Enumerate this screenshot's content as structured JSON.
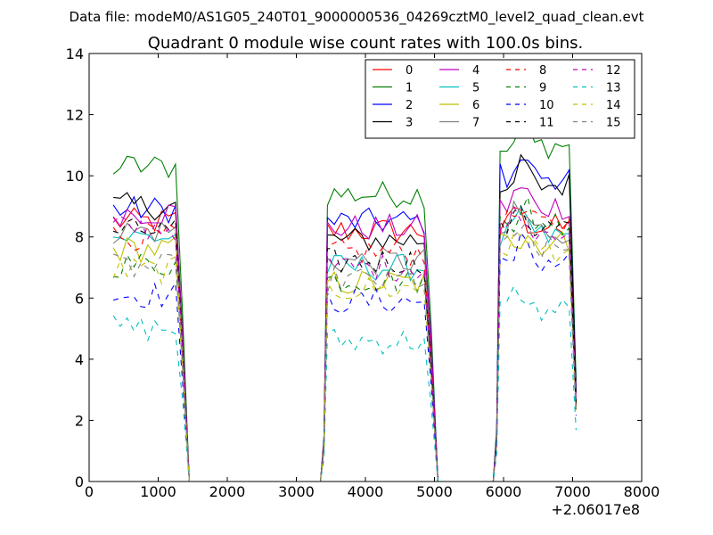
{
  "figure": {
    "suptitle": "Data file: modeM0/AS1G05_240T01_9000000536_04269cztM0_level2_quad_clean.evt"
  },
  "chart_data": {
    "type": "line",
    "title": "Quadrant 0 module wise count rates with 100.0s bins.",
    "xlabel": "",
    "ylabel": "",
    "xlim": [
      0,
      8000
    ],
    "ylim": [
      0,
      14
    ],
    "x_offset_label": "+2.06017e8",
    "xticks": [
      0,
      1000,
      2000,
      3000,
      4000,
      5000,
      6000,
      7000,
      8000
    ],
    "yticks": [
      0,
      2,
      4,
      6,
      8,
      10,
      12,
      14
    ],
    "grid": false,
    "legend": {
      "position": "top-right",
      "columns": 4
    },
    "segments": [
      {
        "start": 350,
        "end": 1450
      },
      {
        "start": 3450,
        "end": 5050
      },
      {
        "start": 5950,
        "end": 7150
      }
    ],
    "series": [
      {
        "name": "0",
        "color": "#ff0000",
        "dash": "solid",
        "levels": [
          8.5,
          8.2,
          8.3
        ]
      },
      {
        "name": "1",
        "color": "#008000",
        "dash": "solid",
        "levels": [
          10.3,
          9.4,
          11.0
        ]
      },
      {
        "name": "2",
        "color": "#0000ff",
        "dash": "solid",
        "levels": [
          8.9,
          8.5,
          10.0
        ]
      },
      {
        "name": "3",
        "color": "#000000",
        "dash": "solid",
        "levels": [
          9.0,
          7.9,
          9.7
        ]
      },
      {
        "name": "4",
        "color": "#bf00bf",
        "dash": "solid",
        "levels": [
          8.8,
          8.3,
          9.0
        ]
      },
      {
        "name": "5",
        "color": "#00bfbf",
        "dash": "solid",
        "levels": [
          8.0,
          7.0,
          8.0
        ]
      },
      {
        "name": "6",
        "color": "#bfbf00",
        "dash": "solid",
        "levels": [
          7.6,
          6.5,
          7.8
        ]
      },
      {
        "name": "7",
        "color": "#808080",
        "dash": "solid",
        "levels": [
          8.2,
          7.2,
          8.2
        ]
      },
      {
        "name": "8",
        "color": "#ff0000",
        "dash": "dashed",
        "levels": [
          8.0,
          7.5,
          8.4
        ]
      },
      {
        "name": "9",
        "color": "#008000",
        "dash": "dashed",
        "levels": [
          7.1,
          6.6,
          8.5
        ]
      },
      {
        "name": "10",
        "color": "#0000ff",
        "dash": "dashed",
        "levels": [
          6.1,
          5.9,
          7.2
        ]
      },
      {
        "name": "11",
        "color": "#000000",
        "dash": "dashed",
        "levels": [
          8.2,
          7.2,
          8.3
        ]
      },
      {
        "name": "12",
        "color": "#bf00bf",
        "dash": "dashed",
        "levels": [
          8.3,
          7.0,
          8.3
        ]
      },
      {
        "name": "13",
        "color": "#00bfbf",
        "dash": "dashed",
        "levels": [
          5.0,
          4.6,
          5.6
        ]
      },
      {
        "name": "14",
        "color": "#bfbf00",
        "dash": "dashed",
        "levels": [
          6.9,
          6.3,
          7.6
        ]
      },
      {
        "name": "15",
        "color": "#808080",
        "dash": "dashed",
        "levels": [
          7.0,
          6.6,
          7.6
        ]
      }
    ]
  }
}
